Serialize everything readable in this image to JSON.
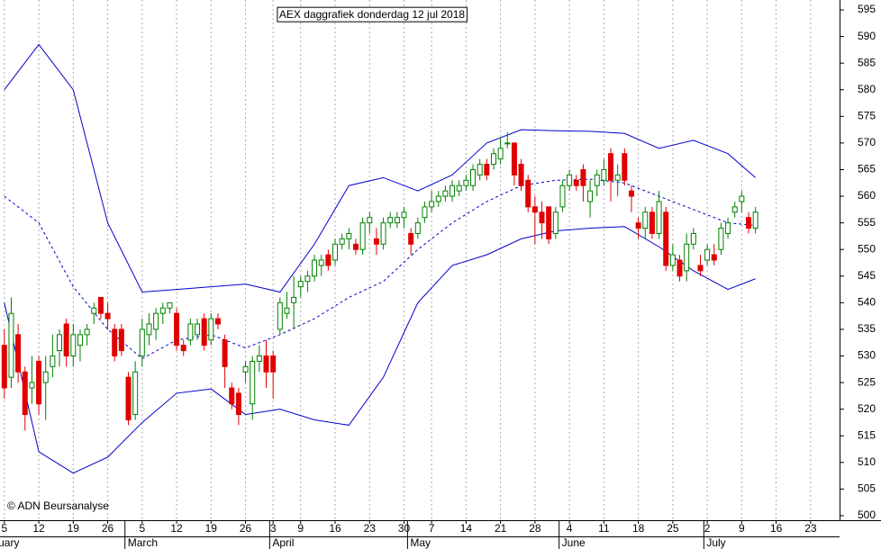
{
  "chart_data": {
    "type": "candlestick",
    "title": "AEX daggrafiek donderdag 12 jul 2018",
    "copyright": "© ADN Beursanalyse",
    "xlim": [
      -0.63,
      121.2
    ],
    "xticks": [
      {
        "value": 0,
        "label": "5"
      },
      {
        "value": 5,
        "label": "12"
      },
      {
        "value": 10,
        "label": "19"
      },
      {
        "value": 15,
        "label": "26"
      },
      {
        "value": 20,
        "label": "5"
      },
      {
        "value": 25,
        "label": "12"
      },
      {
        "value": 30,
        "label": "19"
      },
      {
        "value": 35,
        "label": "26"
      },
      {
        "value": 39,
        "label": "3"
      },
      {
        "value": 43,
        "label": "9"
      },
      {
        "value": 48,
        "label": "16"
      },
      {
        "value": 53,
        "label": "23"
      },
      {
        "value": 58,
        "label": "30"
      },
      {
        "value": 62,
        "label": "7"
      },
      {
        "value": 67,
        "label": "14"
      },
      {
        "value": 72,
        "label": "21"
      },
      {
        "value": 77,
        "label": "28"
      },
      {
        "value": 82,
        "label": "4"
      },
      {
        "value": 87,
        "label": "11"
      },
      {
        "value": 92,
        "label": "18"
      },
      {
        "value": 97,
        "label": "25"
      },
      {
        "value": 102,
        "label": "2"
      },
      {
        "value": 107,
        "label": "9"
      },
      {
        "value": 112,
        "label": "16"
      },
      {
        "value": 117,
        "label": "23"
      }
    ],
    "months": [
      {
        "value": -4,
        "label": "February"
      },
      {
        "value": 18,
        "label": "March"
      },
      {
        "value": 39,
        "label": "April"
      },
      {
        "value": 59,
        "label": "May"
      },
      {
        "value": 81,
        "label": "June"
      },
      {
        "value": 102,
        "label": "July"
      }
    ],
    "ylim": [
      499.15,
      596.86
    ],
    "yticks": [
      500,
      505,
      510,
      515,
      520,
      525,
      530,
      535,
      540,
      545,
      550,
      555,
      560,
      565,
      570,
      575,
      580,
      585,
      590,
      595
    ],
    "grid": "x",
    "up_color": "#008000",
    "down_color": "#e00000",
    "open": [
      532,
      526,
      534,
      527,
      524,
      529,
      525,
      528,
      531,
      536,
      530,
      532,
      534,
      538,
      541,
      538,
      535,
      535,
      526,
      519,
      530,
      534,
      535,
      538,
      539,
      538,
      532,
      533,
      534,
      537,
      533,
      537,
      533,
      524,
      523,
      527,
      521,
      529,
      530,
      530,
      535,
      538,
      540,
      543,
      544,
      545,
      547,
      549,
      548,
      551,
      552,
      551,
      550,
      555,
      552,
      551,
      555,
      555,
      556,
      553,
      553,
      556,
      558,
      559,
      560,
      560,
      561,
      562,
      562,
      564,
      566,
      566,
      567,
      570,
      570,
      566,
      563,
      558,
      557,
      558,
      553,
      558,
      562,
      563,
      565,
      559,
      562,
      563,
      568,
      563,
      568,
      561,
      555,
      554,
      557,
      553,
      557,
      547,
      548,
      546,
      551,
      547,
      548,
      549,
      550,
      553,
      557,
      559,
      556,
      554
    ],
    "high": [
      535,
      541,
      536,
      528,
      530,
      530,
      530,
      534,
      535,
      537,
      536,
      535,
      536,
      540,
      541,
      540,
      536,
      536,
      527,
      529,
      537,
      538,
      539,
      540,
      540,
      539,
      533,
      537,
      537,
      538,
      538,
      538,
      534,
      525,
      524,
      529,
      530,
      532,
      533,
      531,
      541,
      542,
      545,
      545,
      546,
      549,
      549,
      550,
      552,
      553,
      554,
      552,
      556,
      557,
      554,
      556,
      557,
      557,
      558,
      554,
      556,
      559,
      561,
      561,
      562,
      563,
      563,
      564,
      566,
      567,
      567,
      569,
      571,
      572,
      570,
      567,
      564,
      560,
      559,
      558,
      558,
      563,
      565,
      564,
      566,
      563,
      565,
      567,
      569,
      566,
      569,
      562,
      556,
      558,
      558,
      561,
      558,
      551,
      549,
      553,
      554,
      549,
      551,
      551,
      555,
      556,
      559,
      561,
      557,
      558
    ],
    "low": [
      522,
      524,
      525,
      516,
      521,
      519,
      518,
      526,
      528,
      528,
      528,
      529,
      532,
      536,
      537,
      535,
      529,
      530,
      517,
      518,
      528,
      532,
      533,
      536,
      538,
      531,
      530,
      532,
      533,
      531,
      532,
      535,
      524,
      520,
      517,
      525,
      518,
      527,
      524,
      522,
      534,
      537,
      535,
      541,
      542,
      544,
      545,
      546,
      547,
      550,
      550,
      549,
      549,
      553,
      549,
      550,
      554,
      554,
      554,
      549,
      552,
      555,
      557,
      558,
      559,
      559,
      560,
      561,
      561,
      563,
      563,
      565,
      566,
      569,
      562,
      561,
      557,
      551,
      552,
      551,
      552,
      557,
      561,
      561,
      559,
      556,
      560,
      562,
      559,
      560,
      562,
      557,
      552,
      552,
      552,
      552,
      546,
      546,
      544,
      544,
      550,
      545,
      547,
      547,
      549,
      552,
      556,
      557,
      553,
      553
    ],
    "close": [
      524,
      538,
      527,
      519,
      525,
      521,
      527,
      530,
      534,
      530,
      534,
      534,
      535,
      539,
      538,
      537,
      530,
      531,
      518,
      527,
      535,
      536,
      538,
      539,
      540,
      532,
      531,
      536,
      536,
      532,
      537,
      536,
      528,
      521,
      519,
      528,
      529,
      530,
      527,
      527,
      540,
      539,
      541,
      544,
      545,
      548,
      548,
      547,
      551,
      552,
      553,
      550,
      555,
      556,
      551,
      555,
      556,
      556,
      557,
      551,
      555,
      558,
      559,
      560,
      561,
      562,
      562,
      563,
      565,
      566,
      564,
      568,
      569,
      570,
      564,
      562,
      558,
      557,
      555,
      552,
      557,
      562,
      564,
      562,
      562,
      561,
      564,
      565,
      563,
      564,
      563,
      560,
      554,
      557,
      553,
      559,
      547,
      549,
      545,
      551,
      553,
      546,
      550,
      548,
      554,
      555,
      558,
      560,
      554,
      557
    ],
    "bands": {
      "color": "#0000cc",
      "x": [
        0,
        5,
        10,
        15,
        20,
        25,
        30,
        35,
        40,
        45,
        50,
        55,
        60,
        65,
        70,
        75,
        80,
        85,
        90,
        95,
        100,
        105,
        109
      ],
      "upper": [
        580,
        588.5,
        580,
        555,
        542,
        542.5,
        543,
        543.5,
        542,
        551,
        562,
        563.5,
        561,
        564,
        570,
        572.5,
        572.3,
        572.2,
        571.8,
        569,
        570.5,
        568,
        563.5
      ],
      "middle": [
        560,
        555,
        543,
        535,
        529.5,
        533,
        534,
        531.5,
        534,
        537,
        541,
        544,
        550,
        555,
        559,
        562,
        563,
        563.2,
        562.5,
        560,
        557.5,
        555,
        554.5
      ],
      "lower": [
        540,
        512,
        508,
        511,
        517.5,
        523,
        523.8,
        519,
        520,
        518,
        517,
        526,
        540,
        547,
        549,
        552,
        553.5,
        554,
        554.3,
        550.5,
        546,
        542.5,
        544.5
      ]
    }
  }
}
